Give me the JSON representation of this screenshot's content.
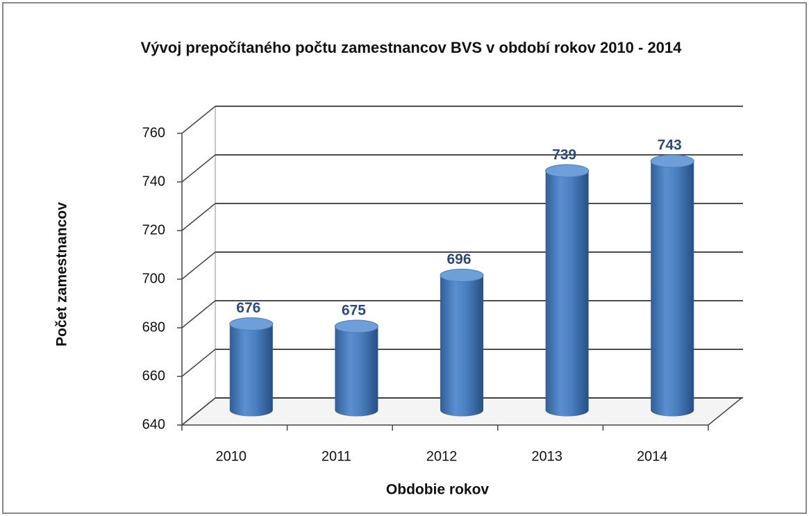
{
  "chart_data": {
    "type": "bar3d",
    "title": "Vývoj prepočítaného počtu zamestnancov BVS v období rokov 2010 - 2014",
    "x_label": "Obdobie rokov",
    "y_label": "Počet zamestnancov",
    "categories": [
      "2010",
      "2011",
      "2012",
      "2013",
      "2014"
    ],
    "values": [
      676,
      675,
      696,
      739,
      743
    ],
    "color": "#4f81bd",
    "ylim": [
      640,
      760
    ],
    "yticks": [
      640,
      660,
      680,
      700,
      720,
      740,
      760
    ],
    "grid": true
  }
}
